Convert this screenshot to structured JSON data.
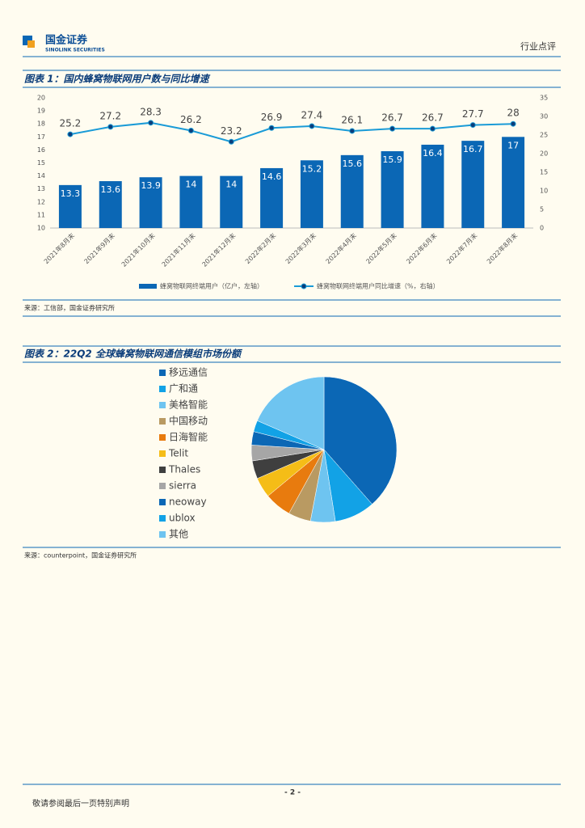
{
  "header": {
    "company": "国金证券",
    "company_en": "SINOLINK SECURITIES",
    "report_type": "行业点评"
  },
  "chart_data": [
    {
      "type": "bar-line",
      "title": "图表 1：国内蜂窝物联网用户数与同比增速",
      "categories": [
        "2021年8月末",
        "2021年9月末",
        "2021年10月末",
        "2021年11月末",
        "2021年12月末",
        "2022年2月末",
        "2022年3月末",
        "2022年4月末",
        "2022年5月末",
        "2022年6月末",
        "2022年7月末",
        "2022年8月末"
      ],
      "series": [
        {
          "name": "蜂窝物联网终端用户（亿户，左轴）",
          "type": "bar",
          "color": "#0b67b5",
          "values": [
            13.3,
            13.6,
            13.9,
            14,
            14,
            14.6,
            15.2,
            15.6,
            15.9,
            16.4,
            16.7,
            17
          ]
        },
        {
          "name": "蜂窝物联网终端用户同比增速（%，右轴）",
          "type": "line",
          "axis": "y2",
          "color": "#1a9bd7",
          "values": [
            25.2,
            27.2,
            28.3,
            26.2,
            23.2,
            26.9,
            27.4,
            26.1,
            26.7,
            26.7,
            27.7,
            28
          ]
        }
      ],
      "ylim": [
        10,
        20
      ],
      "yticks": [
        10,
        11,
        12,
        13,
        14,
        15,
        16,
        17,
        18,
        19,
        20
      ],
      "y2lim": [
        0,
        35
      ],
      "y2ticks": [
        0,
        5,
        10,
        15,
        20,
        25,
        30,
        35
      ],
      "legend": "bottom",
      "source": "来源：工信部，国金证券研究所"
    },
    {
      "type": "pie",
      "title": "图表 2：22Q2 全球蜂窝物联网通信模组市场份额",
      "categories": [
        "移远通信",
        "广和通",
        "美格智能",
        "中国移动",
        "日海智能",
        "Telit",
        "Thales",
        "sierra",
        "neoway",
        "ublox",
        "其他"
      ],
      "values": [
        38.5,
        9,
        5.5,
        5,
        6,
        4.5,
        4,
        3.5,
        3,
        2.5,
        18.5
      ],
      "colors": [
        "#0b67b5",
        "#12a2e6",
        "#6ec4f0",
        "#b99a62",
        "#e87b0e",
        "#f5bd17",
        "#3f3f3f",
        "#a6a6a6",
        "#0b67b5",
        "#12a2e6",
        "#6ec4f0"
      ],
      "legend": "left",
      "source": "来源：counterpoint，国金证券研究所"
    }
  ],
  "footer": {
    "page": "- 2 -",
    "disclaimer": "敬请参阅最后一页特别声明"
  }
}
